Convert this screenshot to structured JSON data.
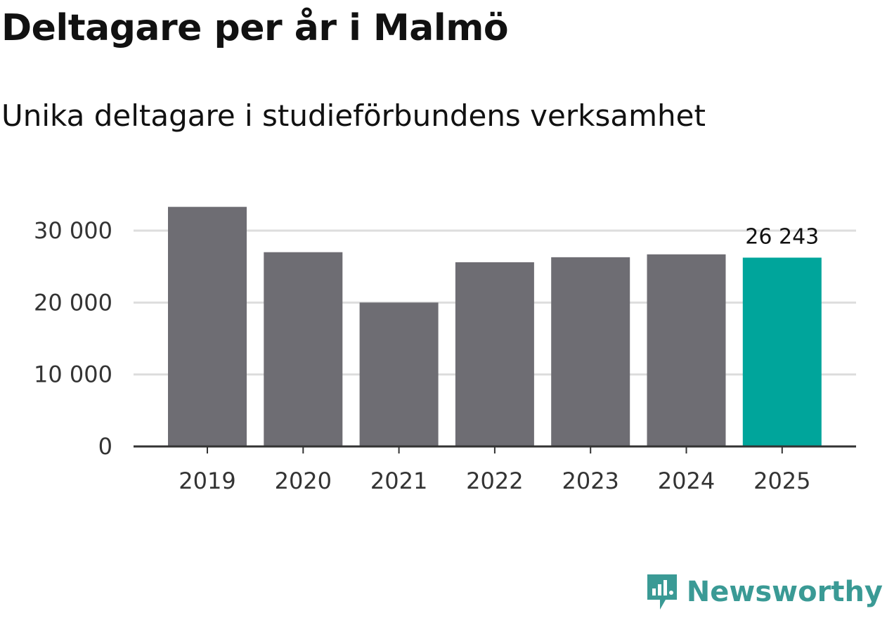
{
  "chart_data": {
    "type": "bar",
    "title": "Deltagare per år i Malmö",
    "subtitle": "Unika deltagare i studieförbundens verksamhet",
    "categories": [
      "2019",
      "2020",
      "2021",
      "2022",
      "2023",
      "2024",
      "2025"
    ],
    "values": [
      33300,
      27000,
      20000,
      25600,
      26300,
      26700,
      26243
    ],
    "highlight_index": 6,
    "highlight_label": "26 243",
    "ylim": [
      0,
      34000
    ],
    "yticks": [
      0,
      10000,
      20000,
      30000
    ],
    "ytick_labels": [
      "0",
      "10 000",
      "20 000",
      "30 000"
    ],
    "xlabel": "",
    "ylabel": "",
    "grid": true,
    "colors": {
      "bar": "#6e6d73",
      "highlight": "#00a59b",
      "grid": "#dddddd",
      "axis": "#333333"
    }
  },
  "brand": {
    "name": "Newsworthy",
    "icon": "newsworthy-logo-icon",
    "color": "#3a9a95"
  }
}
